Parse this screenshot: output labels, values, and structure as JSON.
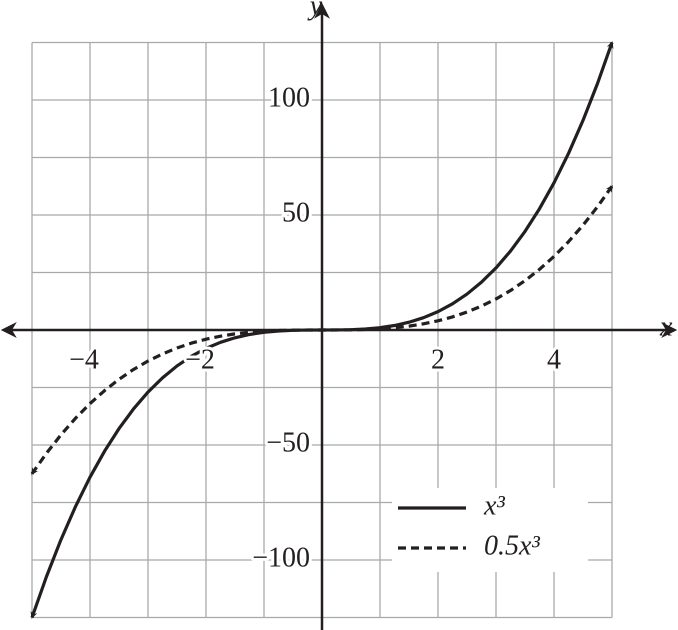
{
  "chart_data": {
    "type": "line",
    "x_label": "x",
    "y_label": "y",
    "x": [
      -5,
      -4.75,
      -4.5,
      -4.25,
      -4,
      -3.75,
      -3.5,
      -3.25,
      -3,
      -2.75,
      -2.5,
      -2.25,
      -2,
      -1.75,
      -1.5,
      -1.25,
      -1,
      -0.75,
      -0.5,
      -0.25,
      0,
      0.25,
      0.5,
      0.75,
      1,
      1.25,
      1.5,
      1.75,
      2,
      2.25,
      2.5,
      2.75,
      3,
      3.25,
      3.5,
      3.75,
      4,
      4.25,
      4.5,
      4.75,
      5
    ],
    "series": [
      {
        "name": "x³",
        "color": "#231f20",
        "dash": false,
        "values": [
          -125,
          -107.171875,
          -91.125,
          -76.765625,
          -64,
          -52.734375,
          -42.875,
          -34.328125,
          -27,
          -20.796875,
          -15.625,
          -11.390625,
          -8,
          -5.359375,
          -3.375,
          -1.953125,
          -1,
          -0.421875,
          -0.125,
          -0.015625,
          0,
          0.015625,
          0.125,
          0.421875,
          1,
          1.953125,
          3.375,
          5.359375,
          8,
          11.390625,
          15.625,
          20.796875,
          27,
          34.328125,
          42.875,
          52.734375,
          64,
          76.765625,
          91.125,
          107.171875,
          125
        ]
      },
      {
        "name": "0.5x³",
        "color": "#231f20",
        "dash": true,
        "values": [
          -62.5,
          -53.5859375,
          -45.5625,
          -38.3828125,
          -32,
          -26.3671875,
          -21.4375,
          -17.1640625,
          -13.5,
          -10.3984375,
          -7.8125,
          -5.6953125,
          -4,
          -2.6796875,
          -1.6875,
          -0.9765625,
          -0.5,
          -0.2109375,
          -0.0625,
          -0.0078125,
          0,
          0.0078125,
          0.0625,
          0.2109375,
          0.5,
          0.9765625,
          1.6875,
          2.6796875,
          4,
          5.6953125,
          7.8125,
          10.3984375,
          13.5,
          17.1640625,
          21.4375,
          26.3671875,
          32,
          38.3828125,
          45.5625,
          53.5859375,
          62.5
        ]
      }
    ],
    "xlim": [
      -5,
      5
    ],
    "ylim": [
      -125,
      125
    ],
    "xticks": [
      {
        "value": -4,
        "label": "−4"
      },
      {
        "value": -2,
        "label": "−2"
      },
      2,
      4
    ],
    "yticks": [
      {
        "value": -100,
        "label": "−100"
      },
      {
        "value": -50,
        "label": "−50"
      },
      50,
      100
    ],
    "grid": true,
    "legend": "lower right"
  }
}
